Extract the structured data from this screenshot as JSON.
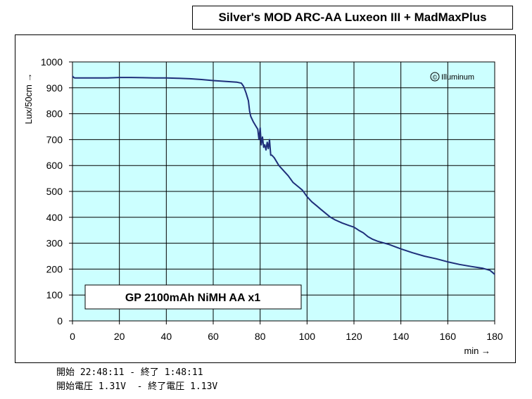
{
  "header": {
    "title": "Silver's MOD ARC-AA Luxeon III + MadMaxPlus"
  },
  "watermark": {
    "symbol": "©",
    "text": "Illuminum"
  },
  "legend_box": {
    "label": "GP 2100mAh NiMH AA x1"
  },
  "footer": {
    "line1": "開始 22:48:11 - 終了 1:48:11",
    "line2": "開始電圧 1.31V  - 終了電圧 1.13V"
  },
  "colors": {
    "plot_bg": "#ccffff",
    "line": "#1f2f7a",
    "grid": "#000000"
  },
  "chart_data": {
    "type": "line",
    "xlabel": "min →",
    "ylabel": "Lux/50cm →",
    "xlim": [
      0,
      180
    ],
    "ylim": [
      0,
      1000
    ],
    "xticks": [
      0,
      20,
      40,
      60,
      80,
      100,
      120,
      140,
      160,
      180
    ],
    "yticks": [
      0,
      100,
      200,
      300,
      400,
      500,
      600,
      700,
      800,
      900,
      1000
    ],
    "grid": true,
    "series": [
      {
        "values_x": [
          0,
          0.5,
          1,
          5,
          10,
          15,
          20,
          25,
          30,
          35,
          40,
          45,
          50,
          55,
          60,
          65,
          70,
          72,
          73,
          74,
          75,
          75.5,
          76,
          77,
          78,
          79,
          79.5,
          80,
          80.5,
          81,
          81.5,
          82,
          82.5,
          83,
          83.5,
          84,
          84.5,
          85,
          86,
          87,
          88,
          90,
          92,
          94,
          96,
          98,
          100,
          102,
          104,
          106,
          108,
          110,
          112,
          115,
          118,
          120,
          122,
          124,
          126,
          128,
          130,
          135,
          140,
          145,
          150,
          155,
          160,
          165,
          170,
          175,
          178,
          180
        ],
        "values_y": [
          945,
          940,
          938,
          938,
          938,
          938,
          940,
          940,
          939,
          938,
          938,
          937,
          935,
          932,
          928,
          925,
          922,
          918,
          905,
          880,
          850,
          810,
          790,
          770,
          755,
          740,
          700,
          745,
          680,
          710,
          670,
          680,
          660,
          690,
          665,
          700,
          640,
          640,
          630,
          615,
          600,
          580,
          560,
          535,
          520,
          505,
          480,
          460,
          445,
          430,
          415,
          400,
          390,
          378,
          368,
          362,
          350,
          340,
          325,
          315,
          308,
          295,
          278,
          263,
          250,
          240,
          228,
          218,
          210,
          203,
          195,
          180
        ]
      }
    ]
  }
}
